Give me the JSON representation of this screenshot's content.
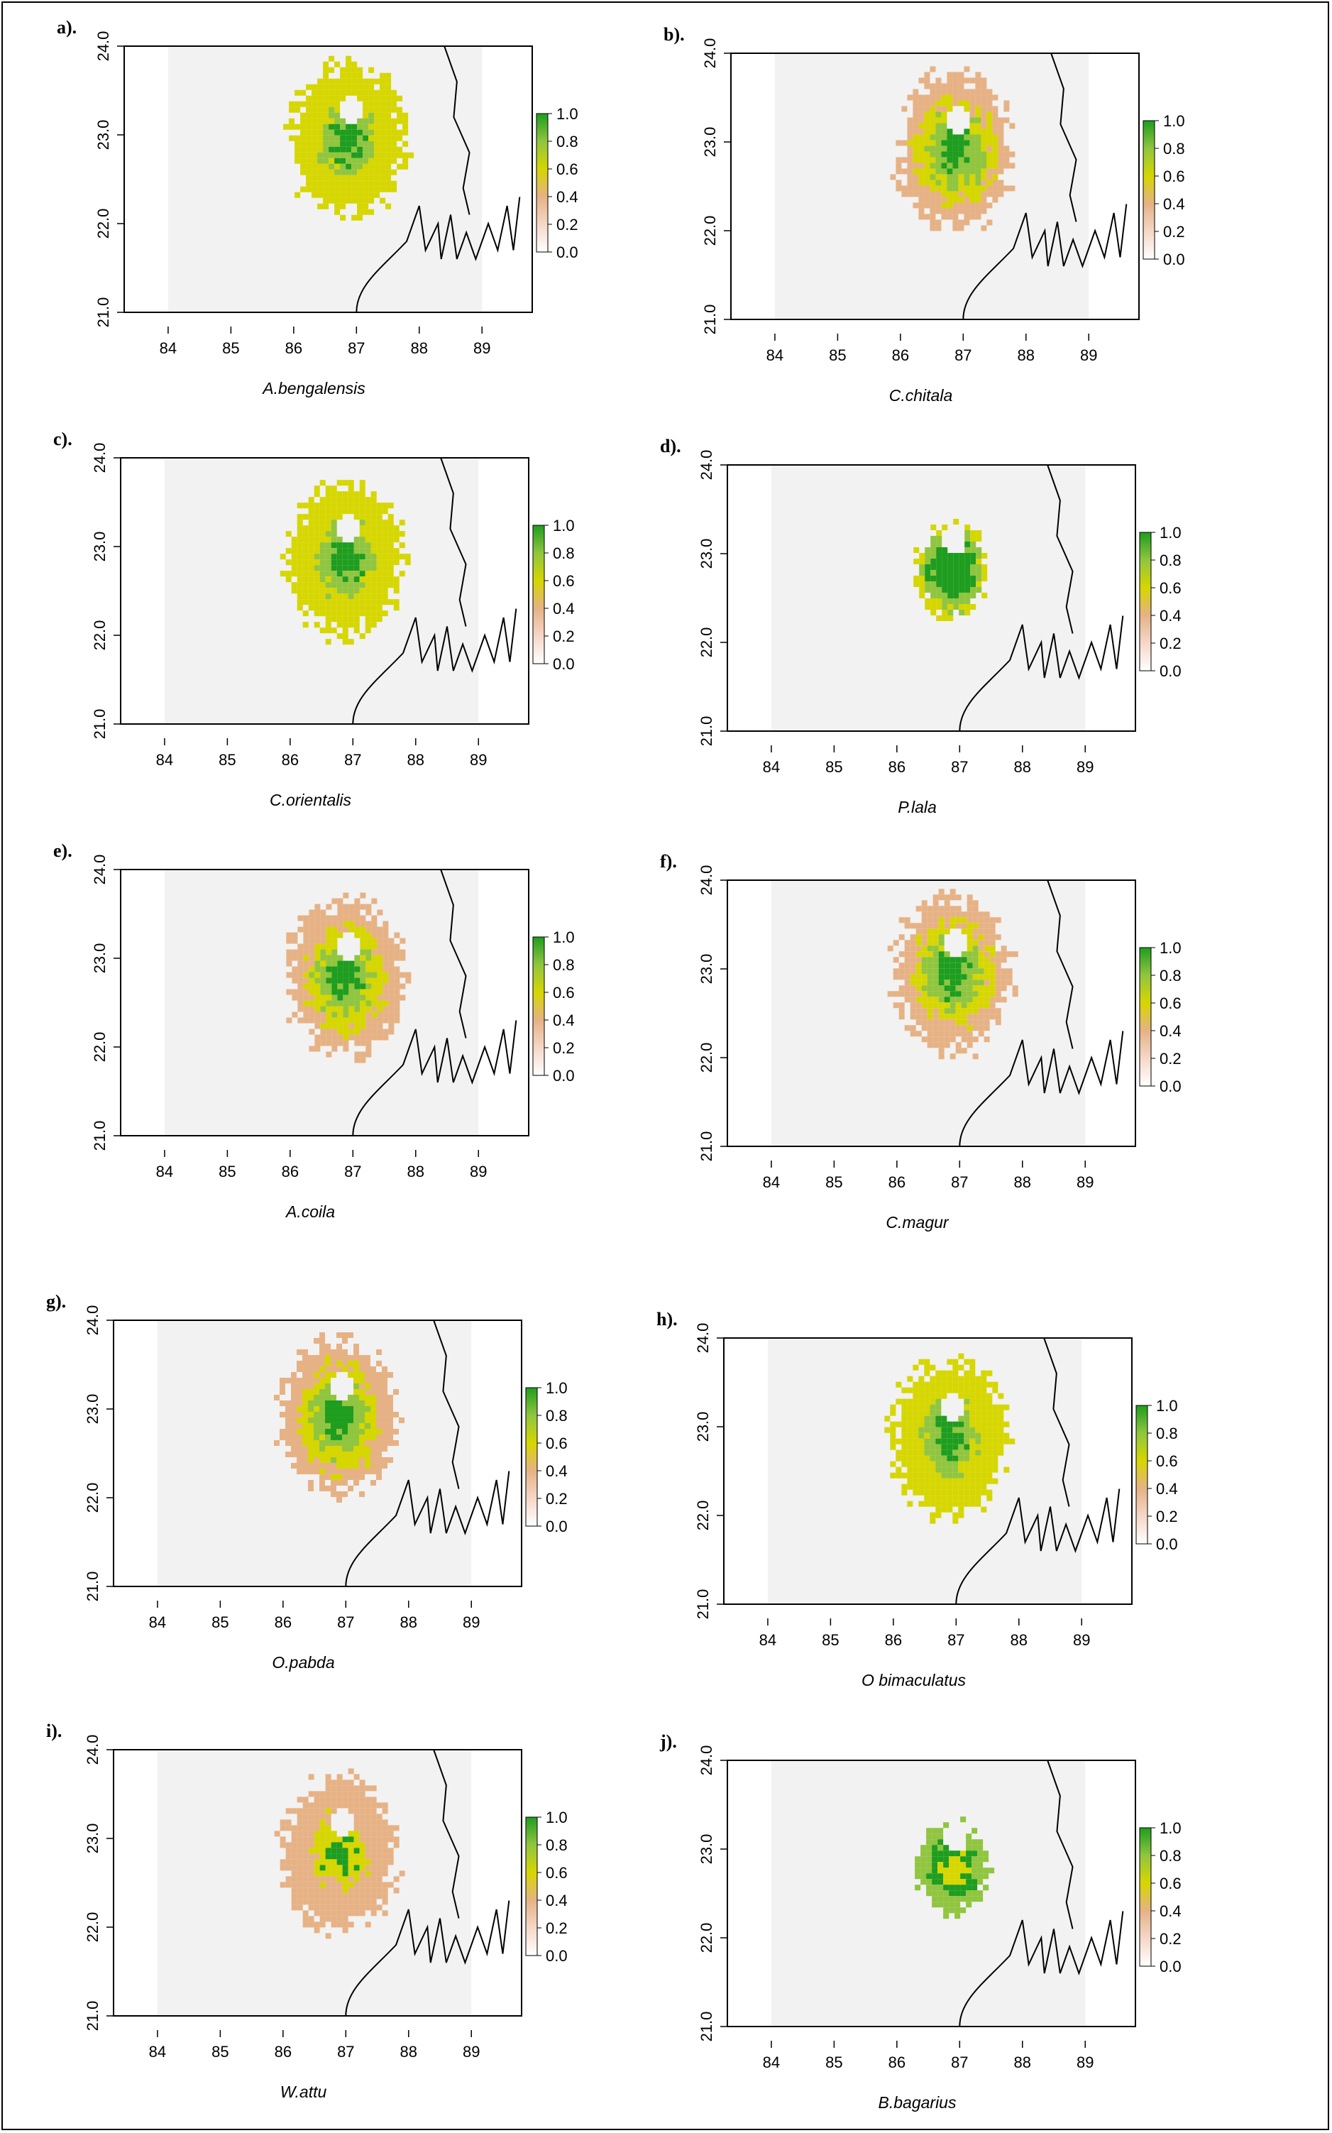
{
  "figure": {
    "x_ticks": [
      "84",
      "85",
      "86",
      "87",
      "88",
      "89"
    ],
    "y_ticks": [
      "21.0",
      "22.0",
      "23.0",
      "24.0"
    ],
    "legend_ticks": [
      "1.0",
      "0.8",
      "0.6",
      "0.4",
      "0.2",
      "0.0"
    ],
    "colors": {
      "background_grid": "#f2f2f2",
      "low": "#f6d7c7",
      "low_mid": "#e6b285",
      "mid": "#d6d600",
      "high": "#90c53f",
      "max": "#1e9d1e",
      "coast": "#000000"
    },
    "panels": [
      {
        "tag": "a).",
        "species": "A.bengalensis",
        "dominant": "yellow-green"
      },
      {
        "tag": "b).",
        "species": "C.chitala",
        "dominant": "tan-yellow-green"
      },
      {
        "tag": "c).",
        "species": "C.orientalis",
        "dominant": "yellow-green"
      },
      {
        "tag": "d).",
        "species": "P.lala",
        "dominant": "green-yellow"
      },
      {
        "tag": "e).",
        "species": "A.coila",
        "dominant": "tan-yellow-green"
      },
      {
        "tag": "f).",
        "species": "C.magur",
        "dominant": "tan-yellow-green"
      },
      {
        "tag": "g).",
        "species": "O.pabda",
        "dominant": "tan-yellow-green"
      },
      {
        "tag": "h).",
        "species": "O bimaculatus",
        "dominant": "yellow-green"
      },
      {
        "tag": "i).",
        "species": "W.attu",
        "dominant": "tan-green"
      },
      {
        "tag": "j).",
        "species": "B.bagarius",
        "dominant": "green"
      }
    ]
  }
}
